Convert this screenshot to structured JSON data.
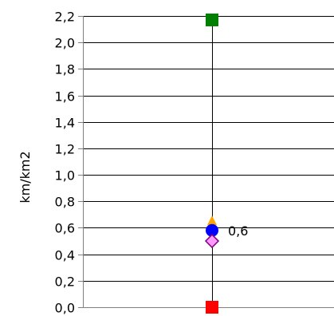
{
  "chart_data": {
    "type": "scatter",
    "title": "",
    "xlabel": "",
    "ylabel": "km/km2",
    "ylim": [
      0,
      2.2
    ],
    "y_ticks": [
      "0,0",
      "0,2",
      "0,4",
      "0,6",
      "0,8",
      "1,0",
      "1,2",
      "1,4",
      "1,6",
      "1,8",
      "2,0",
      "2,2"
    ],
    "grid": true,
    "legend": "none",
    "range_line": {
      "from": 0.0,
      "to": 2.17
    },
    "points": [
      {
        "value": 2.17,
        "marker": "square",
        "color": "#008000"
      },
      {
        "value": 0.65,
        "marker": "triangle",
        "color": "#ffa500"
      },
      {
        "value": 0.58,
        "marker": "circle",
        "color": "#0000ff",
        "label": "0,6"
      },
      {
        "value": 0.5,
        "marker": "diamond",
        "color": "#ff99ff",
        "stroke": "#800080"
      },
      {
        "value": 0.0,
        "marker": "square",
        "color": "#ff0000"
      }
    ],
    "colors": {
      "axis": "#808080",
      "grid": "#000000",
      "range_line": "#000000"
    }
  }
}
